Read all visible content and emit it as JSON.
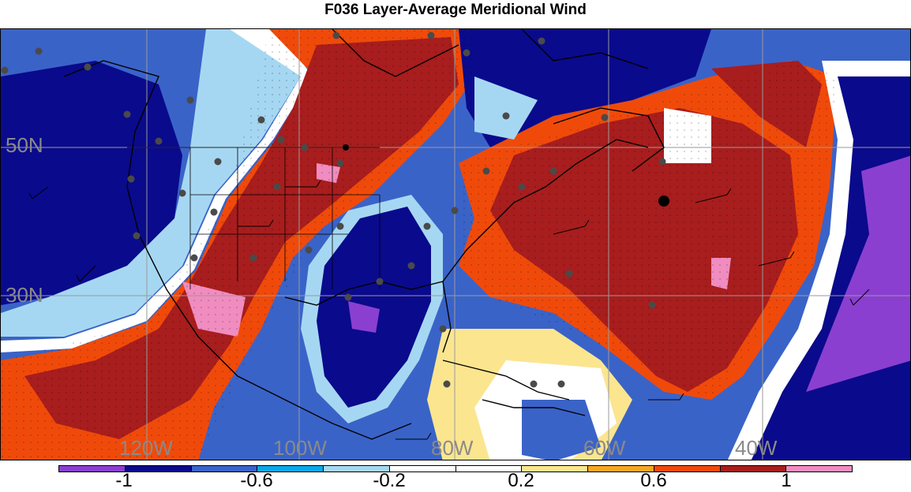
{
  "title": "F036 Layer-Average Meridional Wind",
  "map": {
    "lat_labels": [
      {
        "text": "50N"
      },
      {
        "text": "30N"
      }
    ],
    "lon_labels": [
      {
        "text": "120W"
      },
      {
        "text": "100W"
      },
      {
        "text": "80W"
      },
      {
        "text": "60W"
      },
      {
        "text": "40W"
      }
    ],
    "colors": {
      "lt_purple": "#8a3fd0",
      "dk_blue": "#0a0a8c",
      "med_blue": "#3a63c8",
      "cyan": "#0ea7e6",
      "lt_cyan": "#a6d7f2",
      "white": "#ffffff",
      "lt_yellow": "#fbe58f",
      "orange": "#f5a623",
      "red_orange": "#f04a0a",
      "dark_red": "#a81d1d",
      "pink": "#f08cbf"
    }
  },
  "colorbar": {
    "colors": [
      "#8a3fd0",
      "#0a0a8c",
      "#3a63c8",
      "#0ea7e6",
      "#a6d7f2",
      "#ffffff",
      "#ffffff",
      "#fbe58f",
      "#f5a623",
      "#f04a0a",
      "#a81d1d",
      "#f08cbf"
    ],
    "tick_labels": [
      "-1",
      "-0.6",
      "-0.2",
      "0.2",
      "0.6",
      "1"
    ]
  }
}
